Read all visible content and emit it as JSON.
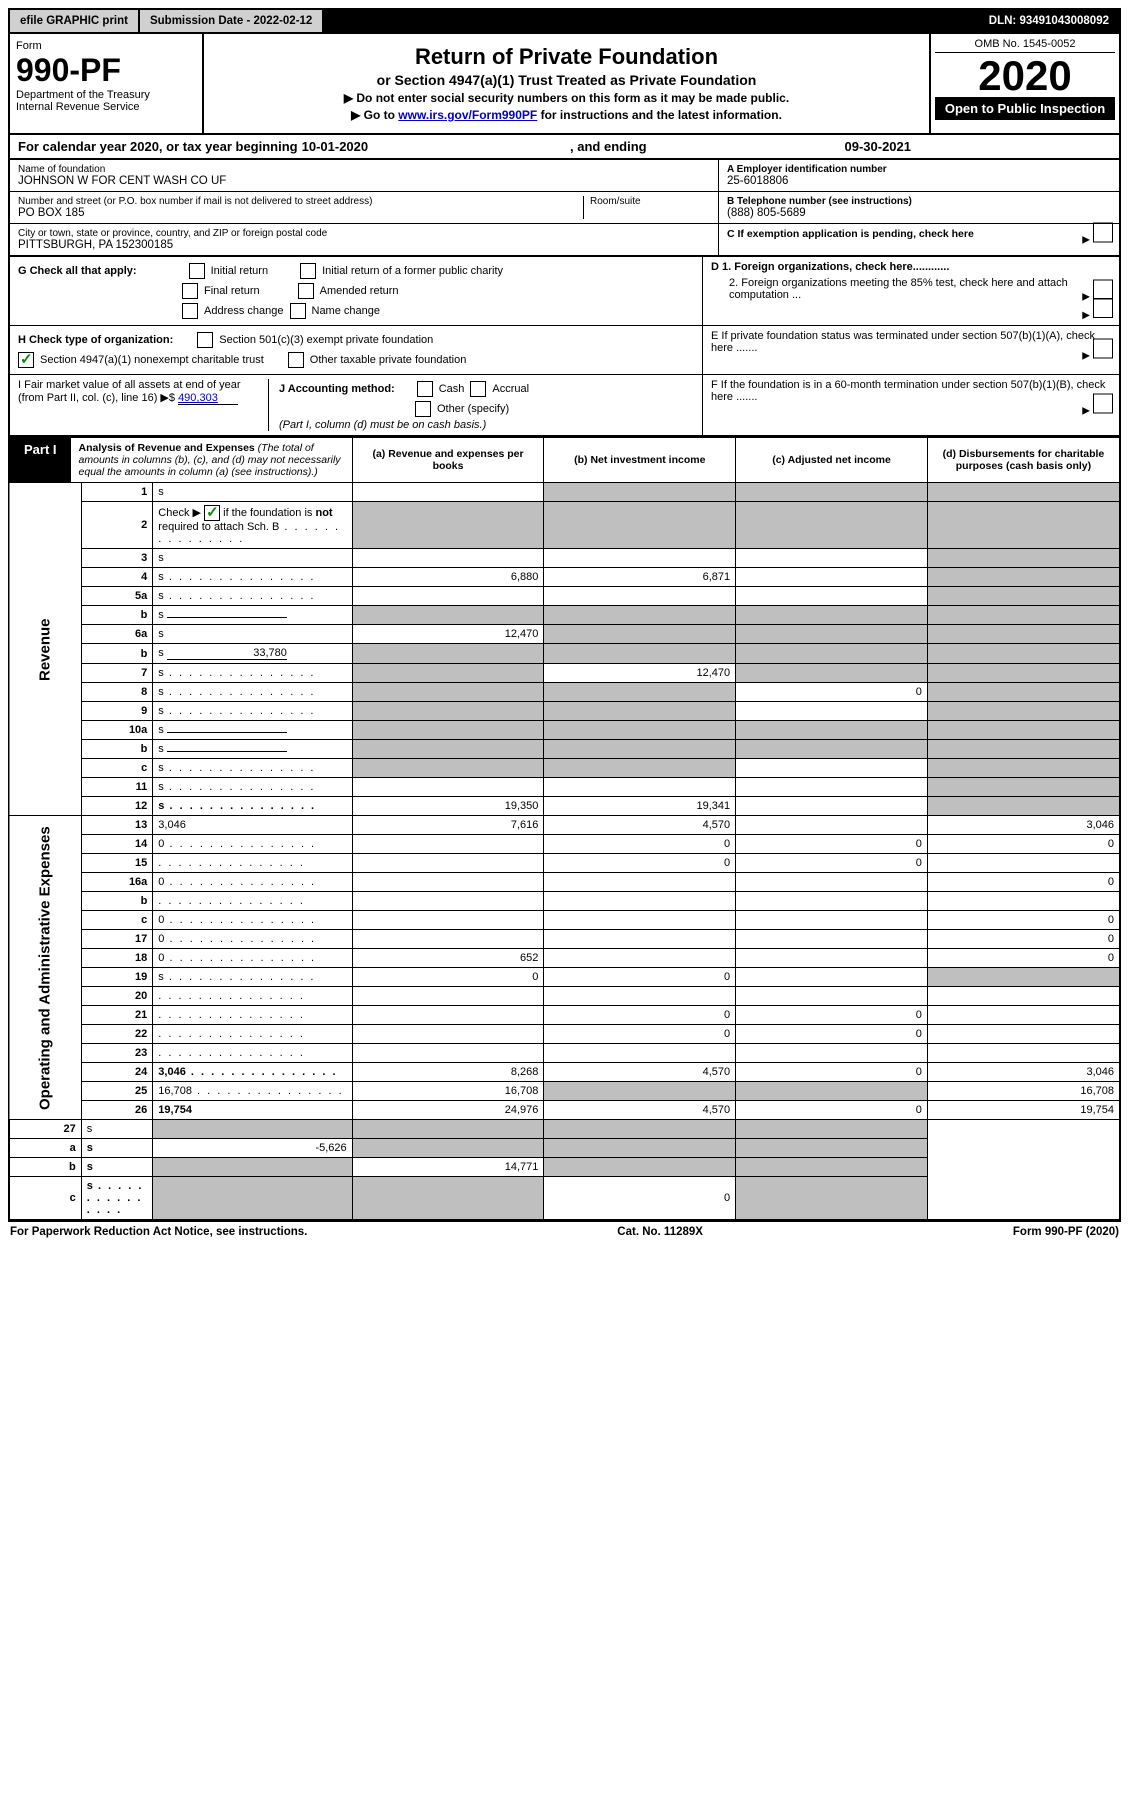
{
  "top": {
    "efile": "efile GRAPHIC print",
    "submission": "Submission Date - 2022-02-12",
    "dln": "DLN: 93491043008092"
  },
  "header": {
    "form": "Form",
    "form_num": "990-PF",
    "dept": "Department of the Treasury",
    "irs": "Internal Revenue Service",
    "title": "Return of Private Foundation",
    "subtitle": "or Section 4947(a)(1) Trust Treated as Private Foundation",
    "note1": "▶ Do not enter social security numbers on this form as it may be made public.",
    "note2_pre": "▶ Go to ",
    "note2_link": "www.irs.gov/Form990PF",
    "note2_post": " for instructions and the latest information.",
    "omb": "OMB No. 1545-0052",
    "year": "2020",
    "open": "Open to Public Inspection"
  },
  "cal": {
    "prefix": "For calendar year 2020, or tax year beginning ",
    "begin": "10-01-2020",
    "mid": " , and ending ",
    "end": "09-30-2021"
  },
  "ident": {
    "name_label": "Name of foundation",
    "name": "JOHNSON W FOR CENT WASH CO UF",
    "addr_label": "Number and street (or P.O. box number if mail is not delivered to street address)",
    "room_label": "Room/suite",
    "addr": "PO BOX 185",
    "city_label": "City or town, state or province, country, and ZIP or foreign postal code",
    "city": "PITTSBURGH, PA  152300185",
    "a_label": "A Employer identification number",
    "a": "25-6018806",
    "b_label": "B Telephone number (see instructions)",
    "b": "(888) 805-5689",
    "c": "C If exemption application is pending, check here",
    "d1": "D 1. Foreign organizations, check here............",
    "d2": "2. Foreign organizations meeting the 85% test, check here and attach computation ...",
    "e": "E  If private foundation status was terminated under section 507(b)(1)(A), check here .......",
    "f": "F  If the foundation is in a 60-month termination under section 507(b)(1)(B), check here .......",
    "g": "G Check all that apply:",
    "g_opts": [
      "Initial return",
      "Initial return of a former public charity",
      "Final return",
      "Amended return",
      "Address change",
      "Name change"
    ],
    "h": "H Check type of organization:",
    "h1": "Section 501(c)(3) exempt private foundation",
    "h2": "Section 4947(a)(1) nonexempt charitable trust",
    "h3": "Other taxable private foundation",
    "i": "I Fair market value of all assets at end of year (from Part II, col. (c), line 16) ▶$",
    "i_val": "490,303",
    "j": "J Accounting method:",
    "j_cash": "Cash",
    "j_accrual": "Accrual",
    "j_other": "Other (specify)",
    "j_note": "(Part I, column (d) must be on cash basis.)"
  },
  "part1": {
    "tab": "Part I",
    "title": "Analysis of Revenue and Expenses",
    "title_note": " (The total of amounts in columns (b), (c), and (d) may not necessarily equal the amounts in column (a) (see instructions).)",
    "col_a": "(a) Revenue and expenses per books",
    "col_b": "(b) Net investment income",
    "col_c": "(c) Adjusted net income",
    "col_d": "(d) Disbursements for charitable purposes (cash basis only)",
    "side_rev": "Revenue",
    "side_exp": "Operating and Administrative Expenses"
  },
  "rows": [
    {
      "n": "1",
      "d": "s",
      "a": "",
      "b": "s",
      "c": "s"
    },
    {
      "n": "2",
      "d": "s",
      "a": "s",
      "b": "s",
      "c": "s",
      "dots": true,
      "nb": true
    },
    {
      "n": "3",
      "d": "s",
      "a": "",
      "b": "",
      "c": ""
    },
    {
      "n": "4",
      "d": "s",
      "a": "6,880",
      "b": "6,871",
      "c": "",
      "dots": true
    },
    {
      "n": "5a",
      "d": "s",
      "a": "",
      "b": "",
      "c": "",
      "dots": true
    },
    {
      "n": "b",
      "d": "s",
      "a": "s",
      "b": "s",
      "c": "s",
      "inline": true
    },
    {
      "n": "6a",
      "d": "s",
      "a": "12,470",
      "b": "s",
      "c": "s"
    },
    {
      "n": "b",
      "d": "s",
      "a": "s",
      "b": "s",
      "c": "s",
      "inline": true,
      "inlineval": "33,780"
    },
    {
      "n": "7",
      "d": "s",
      "a": "s",
      "b": "12,470",
      "c": "s",
      "dots": true
    },
    {
      "n": "8",
      "d": "s",
      "a": "s",
      "b": "s",
      "c": "0",
      "dots": true
    },
    {
      "n": "9",
      "d": "s",
      "a": "s",
      "b": "s",
      "c": "",
      "dots": true
    },
    {
      "n": "10a",
      "d": "s",
      "a": "s",
      "b": "s",
      "c": "s",
      "inline": true
    },
    {
      "n": "b",
      "d": "s",
      "a": "s",
      "b": "s",
      "c": "s",
      "inline": true,
      "dots": true
    },
    {
      "n": "c",
      "d": "s",
      "a": "s",
      "b": "s",
      "c": "",
      "dots": true
    },
    {
      "n": "11",
      "d": "s",
      "a": "",
      "b": "",
      "c": "",
      "dots": true
    },
    {
      "n": "12",
      "d": "s",
      "a": "19,350",
      "b": "19,341",
      "c": "",
      "bold": true,
      "dots": true
    }
  ],
  "exp_rows": [
    {
      "n": "13",
      "d": "3,046",
      "a": "7,616",
      "b": "4,570",
      "c": ""
    },
    {
      "n": "14",
      "d": "0",
      "a": "",
      "b": "0",
      "c": "0",
      "dots": true
    },
    {
      "n": "15",
      "d": "",
      "a": "",
      "b": "0",
      "c": "0",
      "dots": true
    },
    {
      "n": "16a",
      "d": "0",
      "a": "",
      "b": "",
      "c": "",
      "dots": true
    },
    {
      "n": "b",
      "d": "",
      "a": "",
      "b": "",
      "c": "",
      "dots": true
    },
    {
      "n": "c",
      "d": "0",
      "a": "",
      "b": "",
      "c": "",
      "dots": true
    },
    {
      "n": "17",
      "d": "0",
      "a": "",
      "b": "",
      "c": "",
      "dots": true
    },
    {
      "n": "18",
      "d": "0",
      "a": "652",
      "b": "",
      "c": "",
      "dots": true
    },
    {
      "n": "19",
      "d": "s",
      "a": "0",
      "b": "0",
      "c": "",
      "dots": true
    },
    {
      "n": "20",
      "d": "",
      "a": "",
      "b": "",
      "c": "",
      "dots": true
    },
    {
      "n": "21",
      "d": "",
      "a": "",
      "b": "0",
      "c": "0",
      "dots": true
    },
    {
      "n": "22",
      "d": "",
      "a": "",
      "b": "0",
      "c": "0",
      "dots": true
    },
    {
      "n": "23",
      "d": "",
      "a": "",
      "b": "",
      "c": "",
      "dots": true
    },
    {
      "n": "24",
      "d": "3,046",
      "a": "8,268",
      "b": "4,570",
      "c": "0",
      "bold": true,
      "dots": true
    },
    {
      "n": "25",
      "d": "16,708",
      "a": "16,708",
      "b": "s",
      "c": "s",
      "dots": true
    },
    {
      "n": "26",
      "d": "19,754",
      "a": "24,976",
      "b": "4,570",
      "c": "0",
      "bold": true
    }
  ],
  "net_rows": [
    {
      "n": "27",
      "d": "s",
      "a": "s",
      "b": "s",
      "c": "s"
    },
    {
      "n": "a",
      "d": "s",
      "a": "-5,626",
      "b": "s",
      "c": "s",
      "bold": true
    },
    {
      "n": "b",
      "d": "s",
      "a": "s",
      "b": "14,771",
      "c": "s",
      "bold": true
    },
    {
      "n": "c",
      "d": "s",
      "a": "s",
      "b": "s",
      "c": "0",
      "bold": true,
      "dots": true
    }
  ],
  "footer": {
    "left": "For Paperwork Reduction Act Notice, see instructions.",
    "mid": "Cat. No. 11289X",
    "right": "Form 990-PF (2020)"
  },
  "colors": {
    "shade": "#bfbfbf",
    "topbar": "#d0d0d0",
    "link": "#0000cc",
    "check": "#0a8a0a"
  }
}
